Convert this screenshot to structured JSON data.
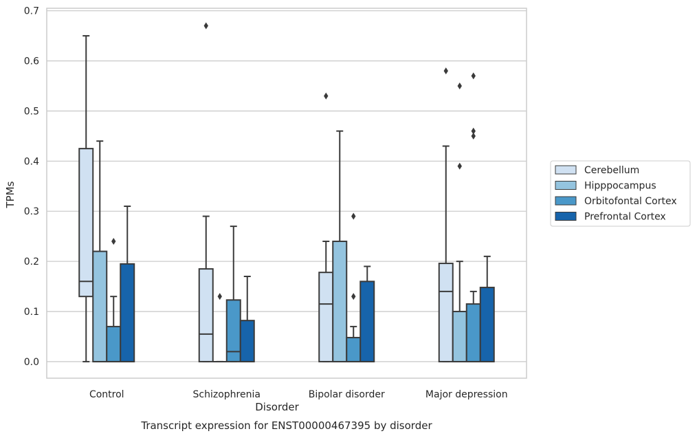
{
  "chart_data": {
    "type": "boxplot",
    "xlabel": "Disorder",
    "ylabel": "TPMs",
    "caption": "Transcript expression for ENST00000467395 by disorder",
    "ylim": [
      -0.033,
      0.705
    ],
    "yticks": [
      "0.0",
      "0.1",
      "0.2",
      "0.3",
      "0.4",
      "0.5",
      "0.6",
      "0.7"
    ],
    "grid": "horizontal",
    "legend_position": "right",
    "categories": [
      "Control",
      "Schizophrenia",
      "Bipolar disorder",
      "Major depression"
    ],
    "series": [
      {
        "name": "Cerebellum",
        "color": "#d0e1f2",
        "boxes": [
          {
            "whislo": 0.0,
            "q1": 0.13,
            "med": 0.16,
            "q3": 0.425,
            "whishi": 0.65,
            "fliers": []
          },
          {
            "whislo": 0.0,
            "q1": 0.0,
            "med": 0.055,
            "q3": 0.185,
            "whishi": 0.29,
            "fliers": [
              0.67
            ]
          },
          {
            "whislo": 0.0,
            "q1": 0.0,
            "med": 0.115,
            "q3": 0.178,
            "whishi": 0.24,
            "fliers": [
              0.53
            ]
          },
          {
            "whislo": 0.0,
            "q1": 0.0,
            "med": 0.14,
            "q3": 0.196,
            "whishi": 0.43,
            "fliers": [
              0.58
            ]
          }
        ]
      },
      {
        "name": "Hipppocampus",
        "color": "#94c4df",
        "boxes": [
          {
            "whislo": 0.0,
            "q1": 0.0,
            "med": 0.0,
            "q3": 0.22,
            "whishi": 0.44,
            "fliers": []
          },
          {
            "whislo": 0.0,
            "q1": 0.0,
            "med": 0.0,
            "q3": 0.0,
            "whishi": 0.0,
            "fliers": [
              0.13
            ]
          },
          {
            "whislo": 0.0,
            "q1": 0.0,
            "med": 0.0,
            "q3": 0.24,
            "whishi": 0.46,
            "fliers": []
          },
          {
            "whislo": 0.0,
            "q1": 0.0,
            "med": 0.0,
            "q3": 0.1,
            "whishi": 0.2,
            "fliers": [
              0.55,
              0.39
            ]
          }
        ]
      },
      {
        "name": "Orbitofontal Cortex",
        "color": "#4a98c9",
        "boxes": [
          {
            "whislo": 0.0,
            "q1": 0.0,
            "med": 0.0,
            "q3": 0.07,
            "whishi": 0.13,
            "fliers": [
              0.24
            ]
          },
          {
            "whislo": 0.0,
            "q1": 0.0,
            "med": 0.02,
            "q3": 0.123,
            "whishi": 0.27,
            "fliers": []
          },
          {
            "whislo": 0.0,
            "q1": 0.0,
            "med": 0.0,
            "q3": 0.048,
            "whishi": 0.07,
            "fliers": [
              0.29,
              0.13
            ]
          },
          {
            "whislo": 0.0,
            "q1": 0.0,
            "med": 0.0,
            "q3": 0.115,
            "whishi": 0.14,
            "fliers": [
              0.57,
              0.46,
              0.45
            ]
          }
        ]
      },
      {
        "name": "Prefrontal Cortex",
        "color": "#1764ab",
        "boxes": [
          {
            "whislo": 0.0,
            "q1": 0.0,
            "med": 0.0,
            "q3": 0.195,
            "whishi": 0.31,
            "fliers": []
          },
          {
            "whislo": 0.0,
            "q1": 0.0,
            "med": 0.0,
            "q3": 0.082,
            "whishi": 0.17,
            "fliers": []
          },
          {
            "whislo": 0.0,
            "q1": 0.0,
            "med": 0.0,
            "q3": 0.16,
            "whishi": 0.19,
            "fliers": []
          },
          {
            "whislo": 0.0,
            "q1": 0.0,
            "med": 0.0,
            "q3": 0.148,
            "whishi": 0.21,
            "fliers": []
          }
        ]
      }
    ]
  }
}
